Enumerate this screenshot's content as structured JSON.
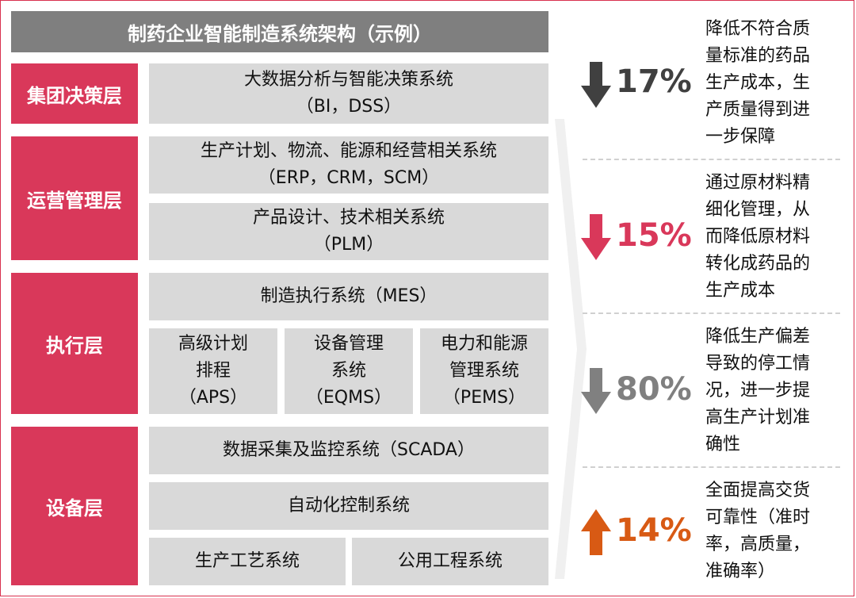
{
  "title": "制药企业智能制造系统架构（示例）",
  "layers": [
    {
      "name": "集团决策层"
    },
    {
      "name": "运营管理层"
    },
    {
      "name": "执行层"
    },
    {
      "name": "设备层"
    }
  ],
  "systems": {
    "bi": "大数据分析与智能决策系统\n（BI，DSS）",
    "erp": "生产计划、物流、能源和经营相关系统\n（ERP，CRM，SCM）",
    "plm": "产品设计、技术相关系统\n（PLM）",
    "mes": "制造执行系统（MES）",
    "aps": "高级计划\n排程\n（APS）",
    "eqms": "设备管理\n系统\n（EQMS）",
    "pems": "电力和能源\n管理系统\n（PEMS）",
    "scada": "数据采集及监控系统（SCADA）",
    "auto": "自动化控制系统",
    "process": "生产工艺系统",
    "utility": "公用工程系统"
  },
  "benefits": [
    {
      "value": "17%",
      "direction": "down",
      "color": "#404040",
      "desc": "降低不符合质\n量标准的药品\n生产成本，生\n产质量得到进\n一步保障"
    },
    {
      "value": "15%",
      "direction": "down",
      "color": "#d9385a",
      "desc": "通过原材料精\n细化管理，从\n而降低原材料\n转化成药品的\n生产成本"
    },
    {
      "value": "80%",
      "direction": "down",
      "color": "#808080",
      "desc": "降低生产偏差\n导致的停工情\n况，进一步提\n高生产计划准\n确性"
    },
    {
      "value": "14%",
      "direction": "up",
      "color": "#d85a14",
      "desc": "全面提高交货\n可靠性（准时\n率，高质量，\n准确率）"
    }
  ]
}
